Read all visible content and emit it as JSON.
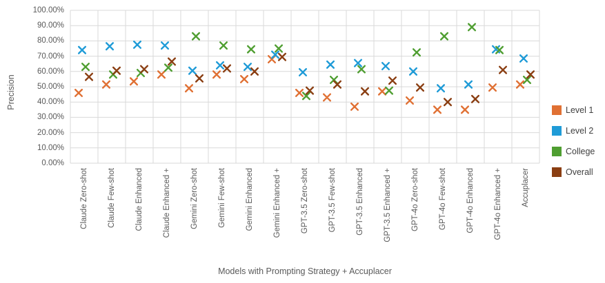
{
  "chart_data": {
    "type": "scatter",
    "marker": "x",
    "xlabel": "Models with Prompting Strategy + Accuplacer",
    "ylabel": "Precision",
    "ylim": [
      0,
      100
    ],
    "y_ticks": [
      "100.00%",
      "90.00%",
      "80.00%",
      "70.00%",
      "60.00%",
      "50.00%",
      "40.00%",
      "30.00%",
      "20.00%",
      "10.00%",
      "0.00%"
    ],
    "grid": true,
    "grid_color": "#D9D9D9",
    "text_color": "#595959",
    "legend_position": "right",
    "legend_entries": [
      "Level 1",
      "Level 2",
      "College",
      "Overall"
    ],
    "categories": [
      "Claude Zero-shot",
      "Claude Few-shot",
      "Claude Enhanced",
      "Claude Enhanced +",
      "Gemini Zero-shot",
      "Gemini Few-shot",
      "Gemini Enhanced",
      "Gemini Enhanced +",
      "GPT-3.5 Zero-shot",
      "GPT-3.5 Few-shot",
      "GPT-3.5 Enhanced",
      "GPT-3.5 Enhanced +",
      "GPT-4o Zero-shot",
      "GPT-4o Few-shot",
      "GPT-4o Enhanced",
      "GPT-4o Enhanced +",
      "Accuplacer"
    ],
    "series": [
      {
        "name": "Level 1",
        "color": "#E07033",
        "values": [
          46,
          51.5,
          53.5,
          58,
          49,
          58,
          55,
          68,
          46,
          43,
          37,
          47,
          41,
          35,
          35,
          49.5,
          51.5
        ]
      },
      {
        "name": "Level 2",
        "color": "#1F9BD7",
        "values": [
          74,
          76.5,
          77.5,
          77,
          60.5,
          64,
          63,
          71,
          59.5,
          64.5,
          65.5,
          63.5,
          60,
          49,
          51.5,
          74.5,
          68.5
        ]
      },
      {
        "name": "College",
        "color": "#4F9E31",
        "values": [
          63,
          58,
          59,
          62.5,
          83,
          77,
          74.5,
          75,
          44,
          54.5,
          61.5,
          47.5,
          72.5,
          83,
          89,
          74,
          54.5
        ]
      },
      {
        "name": "Overall",
        "color": "#8A3E12",
        "values": [
          56.5,
          60.5,
          61.5,
          66.5,
          55.5,
          62,
          60,
          69.5,
          47.5,
          51.5,
          47,
          54,
          49.5,
          40,
          42,
          61,
          58
        ]
      }
    ]
  }
}
